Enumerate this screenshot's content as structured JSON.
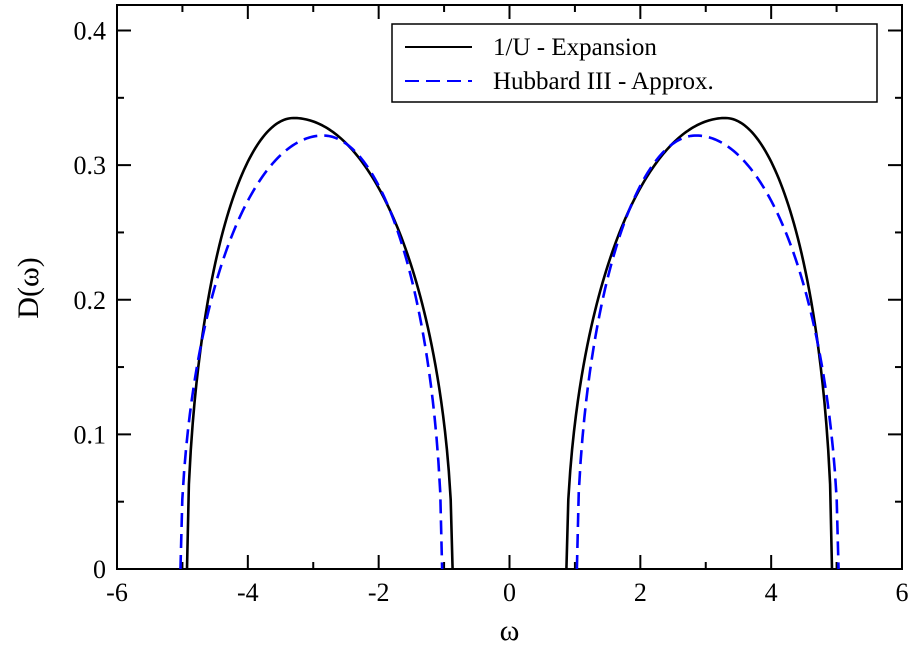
{
  "chart_data": {
    "type": "line",
    "title": "",
    "xlabel": "ω",
    "ylabel": "D(ω)",
    "xlim": [
      -6,
      6
    ],
    "ylim": [
      0,
      0.42
    ],
    "x_ticks": [
      -6,
      -4,
      -2,
      0,
      2,
      4,
      6
    ],
    "x_tick_labels": [
      "-6",
      "-4",
      "-2",
      "0",
      "2",
      "4",
      "6"
    ],
    "y_ticks": [
      0,
      0.1,
      0.2,
      0.3,
      0.4
    ],
    "y_tick_labels": [
      "0",
      "0.1",
      "0.2",
      "0.3",
      "0.4"
    ],
    "grid": false,
    "legend": {
      "position": "top-right",
      "boxed": true
    },
    "series": [
      {
        "name": "1/U - Expansion",
        "color": "#000000",
        "dash": "solid",
        "bands": [
          {
            "left_edge": -4.93,
            "right_edge": -0.87,
            "peak_x": -3.3,
            "peak_y": 0.335
          },
          {
            "left_edge": 0.87,
            "right_edge": 4.93,
            "peak_x": 3.3,
            "peak_y": 0.335
          }
        ]
      },
      {
        "name": "Hubbard III - Approx.",
        "color": "#0000ff",
        "dash": "dashed",
        "bands": [
          {
            "left_edge": -5.03,
            "right_edge": -1.03,
            "peak_x": -2.85,
            "peak_y": 0.322
          },
          {
            "left_edge": 1.03,
            "right_edge": 5.03,
            "peak_x": 2.85,
            "peak_y": 0.322
          }
        ]
      }
    ]
  }
}
